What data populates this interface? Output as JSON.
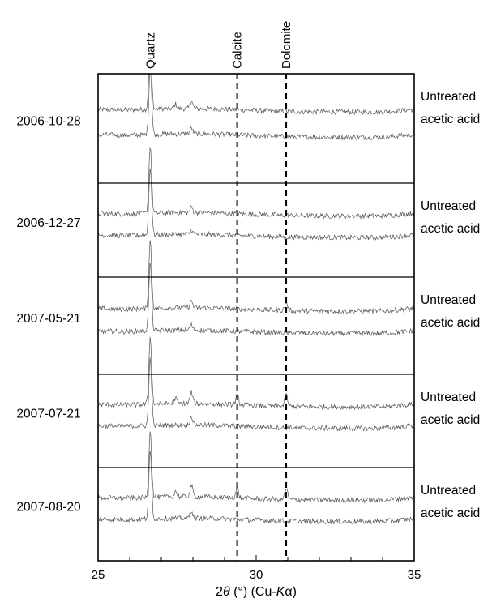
{
  "chart_data": {
    "type": "line",
    "title": "",
    "xlabel_parts": [
      "2",
      "θ",
      " (°) (Cu-",
      "K",
      "α)"
    ],
    "xlabel": "2θ (°) (Cu-Kα)",
    "ylabel": "",
    "xlim": [
      25,
      35
    ],
    "x_ticks": [
      25,
      30,
      35
    ],
    "grid": false,
    "reference_lines": [
      {
        "label": "Quartz",
        "x": 26.65,
        "style": "none"
      },
      {
        "label": "Calcite",
        "x": 29.4,
        "style": "dashed"
      },
      {
        "label": "Dolomite",
        "x": 30.95,
        "style": "dashed"
      }
    ],
    "panels": [
      {
        "date": "2006-10-28",
        "series": [
          {
            "name": "Untreated",
            "peaks": [
              {
                "x": 26.65,
                "h": 12
              },
              {
                "x": 27.45,
                "h": 0.8
              },
              {
                "x": 27.95,
                "h": 1.4
              }
            ]
          },
          {
            "name": "acetic acid",
            "peaks": [
              {
                "x": 26.65,
                "h": 12
              },
              {
                "x": 27.95,
                "h": 1.0
              }
            ]
          }
        ]
      },
      {
        "date": "2006-12-27",
        "series": [
          {
            "name": "Untreated",
            "peaks": [
              {
                "x": 26.65,
                "h": 12
              },
              {
                "x": 27.95,
                "h": 1.0
              }
            ]
          },
          {
            "name": "acetic acid",
            "peaks": [
              {
                "x": 26.65,
                "h": 12
              },
              {
                "x": 27.95,
                "h": 0.8
              }
            ]
          }
        ]
      },
      {
        "date": "2007-05-21",
        "series": [
          {
            "name": "Untreated",
            "peaks": [
              {
                "x": 26.65,
                "h": 12
              },
              {
                "x": 27.95,
                "h": 1.2
              },
              {
                "x": 30.95,
                "h": 1.4
              }
            ]
          },
          {
            "name": "acetic acid",
            "peaks": [
              {
                "x": 26.65,
                "h": 12
              },
              {
                "x": 27.95,
                "h": 0.9
              }
            ]
          }
        ]
      },
      {
        "date": "2007-07-21",
        "series": [
          {
            "name": "Untreated",
            "peaks": [
              {
                "x": 26.65,
                "h": 12
              },
              {
                "x": 27.45,
                "h": 1.0
              },
              {
                "x": 27.95,
                "h": 2.0
              },
              {
                "x": 29.4,
                "h": 1.6
              },
              {
                "x": 30.95,
                "h": 2.0
              }
            ]
          },
          {
            "name": "acetic acid",
            "peaks": [
              {
                "x": 26.65,
                "h": 12
              },
              {
                "x": 27.95,
                "h": 1.6
              }
            ]
          }
        ]
      },
      {
        "date": "2007-08-20",
        "series": [
          {
            "name": "Untreated",
            "peaks": [
              {
                "x": 26.65,
                "h": 12
              },
              {
                "x": 27.45,
                "h": 1.0
              },
              {
                "x": 27.95,
                "h": 2.0
              },
              {
                "x": 29.4,
                "h": 1.8
              },
              {
                "x": 30.95,
                "h": 2.0
              }
            ]
          },
          {
            "name": "acetic acid",
            "peaks": [
              {
                "x": 26.65,
                "h": 12
              },
              {
                "x": 27.95,
                "h": 1.4
              }
            ]
          }
        ]
      }
    ]
  },
  "colors": {
    "trace": "#555555",
    "frame": "#000000"
  }
}
